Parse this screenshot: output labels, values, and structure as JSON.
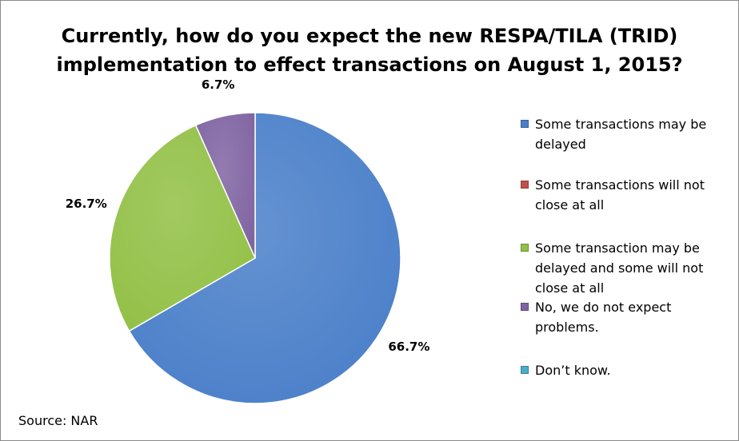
{
  "chart_data": {
    "type": "pie",
    "title_lines": [
      "Currently, how do you expect the new RESPA/TILA (TRID)",
      "implementation to effect transactions on August 1, 2015?"
    ],
    "categories": [
      "Some transactions may be delayed",
      "Some transactions will not close at all",
      "Some transaction may be delayed and some will not close at all",
      "No, we do not expect problems.",
      "Don’t know."
    ],
    "values": [
      66.7,
      0,
      26.7,
      6.7,
      0
    ],
    "data_labels": [
      "66.7%",
      "",
      "26.7%",
      "6.7%",
      ""
    ],
    "colors": [
      "#4a7fc9",
      "#c0504d",
      "#92c046",
      "#8064a2",
      "#4bacc6"
    ],
    "legend_position": "right"
  },
  "legend": {
    "items": [
      {
        "lines": [
          "Some transactions may be",
          "delayed"
        ],
        "color": "#4a7fc9"
      },
      {
        "lines": [
          "Some transactions will not",
          "close at all"
        ],
        "color": "#c0504d"
      },
      {
        "lines": [
          "Some transaction may be",
          "delayed and some will not",
          "close at all"
        ],
        "color": "#92c046"
      },
      {
        "lines": [
          "No, we do not expect",
          "problems."
        ],
        "color": "#8064a2"
      },
      {
        "lines": [
          "Don’t know."
        ],
        "color": "#4bacc6"
      }
    ]
  },
  "source": "Source: NAR"
}
